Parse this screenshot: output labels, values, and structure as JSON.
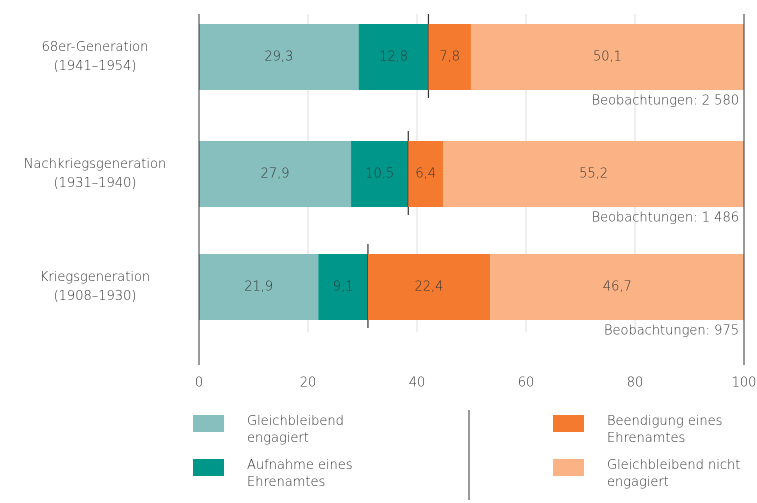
{
  "chart_data": {
    "type": "stacked_bar_horizontal",
    "categories": [
      "68er-Generation\n(1941–1954)",
      "Nachkriegsgeneration\n(1931–1940)",
      "Kriegsgeneration\n(1908–1930)"
    ],
    "series": [
      {
        "name": "Gleichbleibend engagiert",
        "color": "#86bfbd",
        "values": [
          29.3,
          27.9,
          21.9
        ],
        "value_labels": [
          "29,3",
          "27,9",
          "21,9"
        ]
      },
      {
        "name": "Aufnahme eines Ehrenamtes",
        "color": "#00968a",
        "values": [
          12.8,
          10.5,
          9.1
        ],
        "value_labels": [
          "12,8",
          "10,5",
          "9,1"
        ]
      },
      {
        "name": "Beendigung eines Ehrenamtes",
        "color": "#f47a2f",
        "values": [
          7.8,
          6.4,
          22.4
        ],
        "value_labels": [
          "7,8",
          "6,4",
          "22,4"
        ]
      },
      {
        "name": "Gleichbleibend nicht engagiert",
        "color": "#fbb386",
        "values": [
          50.1,
          55.2,
          46.7
        ],
        "value_labels": [
          "50,1",
          "55,2",
          "46,7"
        ]
      }
    ],
    "annotations": [
      "Beobachtungen: 2 580",
      "Beobachtungen: 1 486",
      "Beobachtungen: 975"
    ],
    "xlim": [
      0,
      100
    ],
    "xticks": [
      0,
      20,
      40,
      60,
      80,
      100
    ],
    "grid": true
  }
}
